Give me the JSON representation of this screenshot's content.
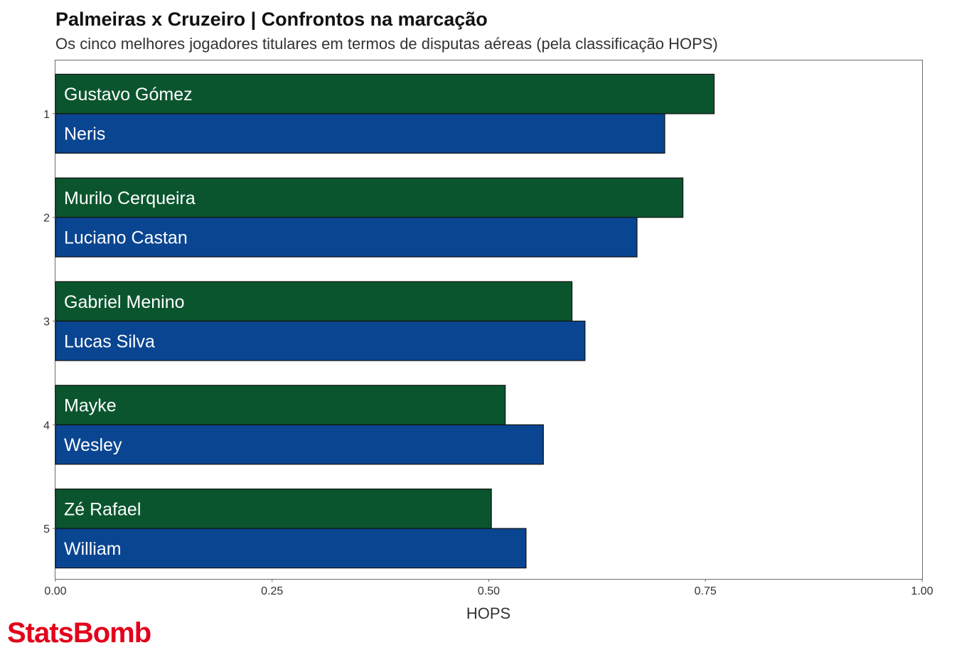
{
  "chart_data": {
    "type": "bar",
    "orientation": "horizontal",
    "title": "Palmeiras x Cruzeiro | Confrontos na marcação",
    "subtitle": "Os cinco melhores jogadores titulares em termos de disputas aéreas (pela classificação HOPS)",
    "xlabel": "HOPS",
    "ylabel": "",
    "xlim": [
      0,
      1
    ],
    "x_ticks": [
      "0.00",
      "0.25",
      "0.50",
      "0.75",
      "1.00"
    ],
    "categories": [
      "1",
      "2",
      "3",
      "4",
      "5"
    ],
    "grid": false,
    "series": [
      {
        "color": "#0b552e",
        "values": [
          0.76,
          0.724,
          0.596,
          0.519,
          0.503
        ],
        "labels": [
          "Gustavo Gómez",
          "Murilo Cerqueira",
          "Gabriel Menino",
          "Mayke",
          "Zé Rafael"
        ]
      },
      {
        "color": "#0a4591",
        "values": [
          0.703,
          0.671,
          0.611,
          0.563,
          0.543
        ],
        "labels": [
          "Neris",
          "Luciano Castan",
          "Lucas Silva",
          "Wesley",
          "William"
        ]
      }
    ]
  },
  "brand": {
    "name": "StatsBomb",
    "color": "#e3001b"
  }
}
